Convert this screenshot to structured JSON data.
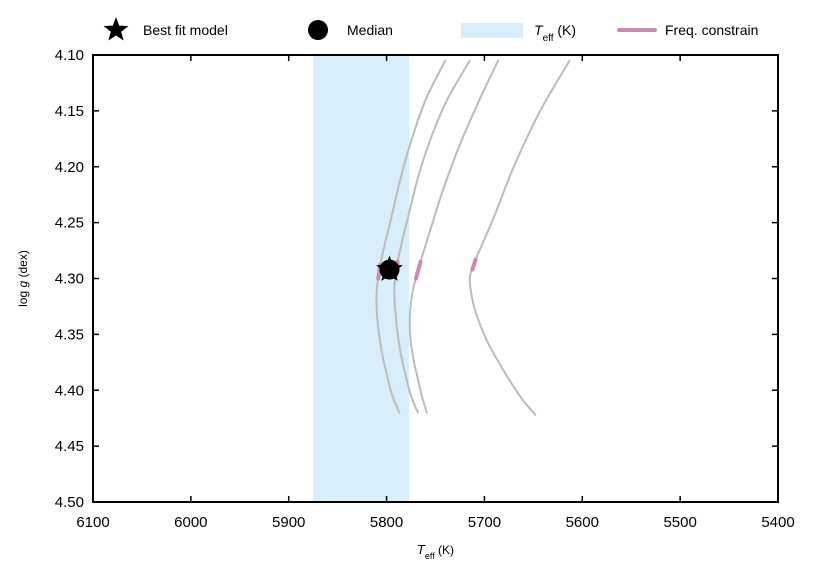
{
  "chart_data": {
    "type": "line",
    "xlabel": {
      "main": "T",
      "sub": "eff",
      "unit": " (K)"
    },
    "ylabel": {
      "pre": "log ",
      "italic": "g",
      "post": " (dex)"
    },
    "xlim": [
      6100,
      5400
    ],
    "ylim": [
      4.1,
      4.5
    ],
    "x_inverted": true,
    "y_inverted": true,
    "xticks": [
      6100,
      6000,
      5900,
      5800,
      5700,
      5600,
      5500,
      5400
    ],
    "yticks": [
      "4.10",
      "4.15",
      "4.20",
      "4.25",
      "4.30",
      "4.35",
      "4.40",
      "4.45",
      "4.50"
    ],
    "grid": false,
    "legend": {
      "placement": "top",
      "entries": [
        {
          "id": "best",
          "label": "Best fit model",
          "marker": "star"
        },
        {
          "id": "median",
          "label": "Median",
          "marker": "circle"
        },
        {
          "id": "teff",
          "label_main": "T",
          "label_sub": "eff",
          "label_post": " (K)",
          "marker": "band"
        },
        {
          "id": "freq",
          "label": "Freq. constrain",
          "marker": "line"
        }
      ]
    },
    "teff_band": {
      "x0": 5875,
      "x1": 5777,
      "color": "#d8eefa"
    },
    "colors": {
      "track": "#bcbcbc",
      "track_in_band": "#a9b4bd",
      "freq": "#cc8ab4",
      "marker": "#000000",
      "axis": "#000000"
    },
    "best_fit": {
      "x": 5797,
      "y": 4.292
    },
    "median": {
      "x": 5797,
      "y": 4.292
    },
    "series": [
      {
        "points": [
          [
            5686,
            4.105
          ],
          [
            5705,
            4.14
          ],
          [
            5725,
            4.18
          ],
          [
            5742,
            4.22
          ],
          [
            5753,
            4.25
          ],
          [
            5760,
            4.27
          ],
          [
            5767,
            4.29
          ],
          [
            5773,
            4.31
          ],
          [
            5776,
            4.33
          ],
          [
            5776,
            4.35
          ],
          [
            5773,
            4.37
          ],
          [
            5768,
            4.39
          ],
          [
            5764,
            4.405
          ],
          [
            5759,
            4.42
          ]
        ],
        "freq_y": [
          4.285,
          4.3
        ]
      },
      {
        "points": [
          [
            5613,
            4.105
          ],
          [
            5643,
            4.15
          ],
          [
            5670,
            4.2
          ],
          [
            5688,
            4.24
          ],
          [
            5700,
            4.265
          ],
          [
            5710,
            4.285
          ],
          [
            5715,
            4.3
          ],
          [
            5712,
            4.32
          ],
          [
            5705,
            4.34
          ],
          [
            5695,
            4.36
          ],
          [
            5682,
            4.38
          ],
          [
            5664,
            4.405
          ],
          [
            5648,
            4.422
          ]
        ],
        "freq_y": [
          4.283,
          4.292
        ]
      },
      {
        "points": [
          [
            5715,
            4.105
          ],
          [
            5738,
            4.14
          ],
          [
            5755,
            4.175
          ],
          [
            5768,
            4.21
          ],
          [
            5778,
            4.245
          ],
          [
            5785,
            4.27
          ],
          [
            5790,
            4.29
          ],
          [
            5792,
            4.31
          ],
          [
            5791,
            4.33
          ],
          [
            5787,
            4.36
          ],
          [
            5781,
            4.385
          ],
          [
            5775,
            4.405
          ],
          [
            5768,
            4.42
          ]
        ],
        "freq_y": [
          4.285,
          4.298
        ]
      },
      {
        "points": [
          [
            5740,
            4.105
          ],
          [
            5760,
            4.14
          ],
          [
            5776,
            4.18
          ],
          [
            5787,
            4.215
          ],
          [
            5795,
            4.245
          ],
          [
            5802,
            4.27
          ],
          [
            5807,
            4.29
          ],
          [
            5810,
            4.31
          ],
          [
            5810,
            4.33
          ],
          [
            5806,
            4.36
          ],
          [
            5800,
            4.385
          ],
          [
            5794,
            4.405
          ],
          [
            5787,
            4.42
          ]
        ],
        "freq_y": [
          4.288,
          4.3
        ]
      }
    ]
  }
}
